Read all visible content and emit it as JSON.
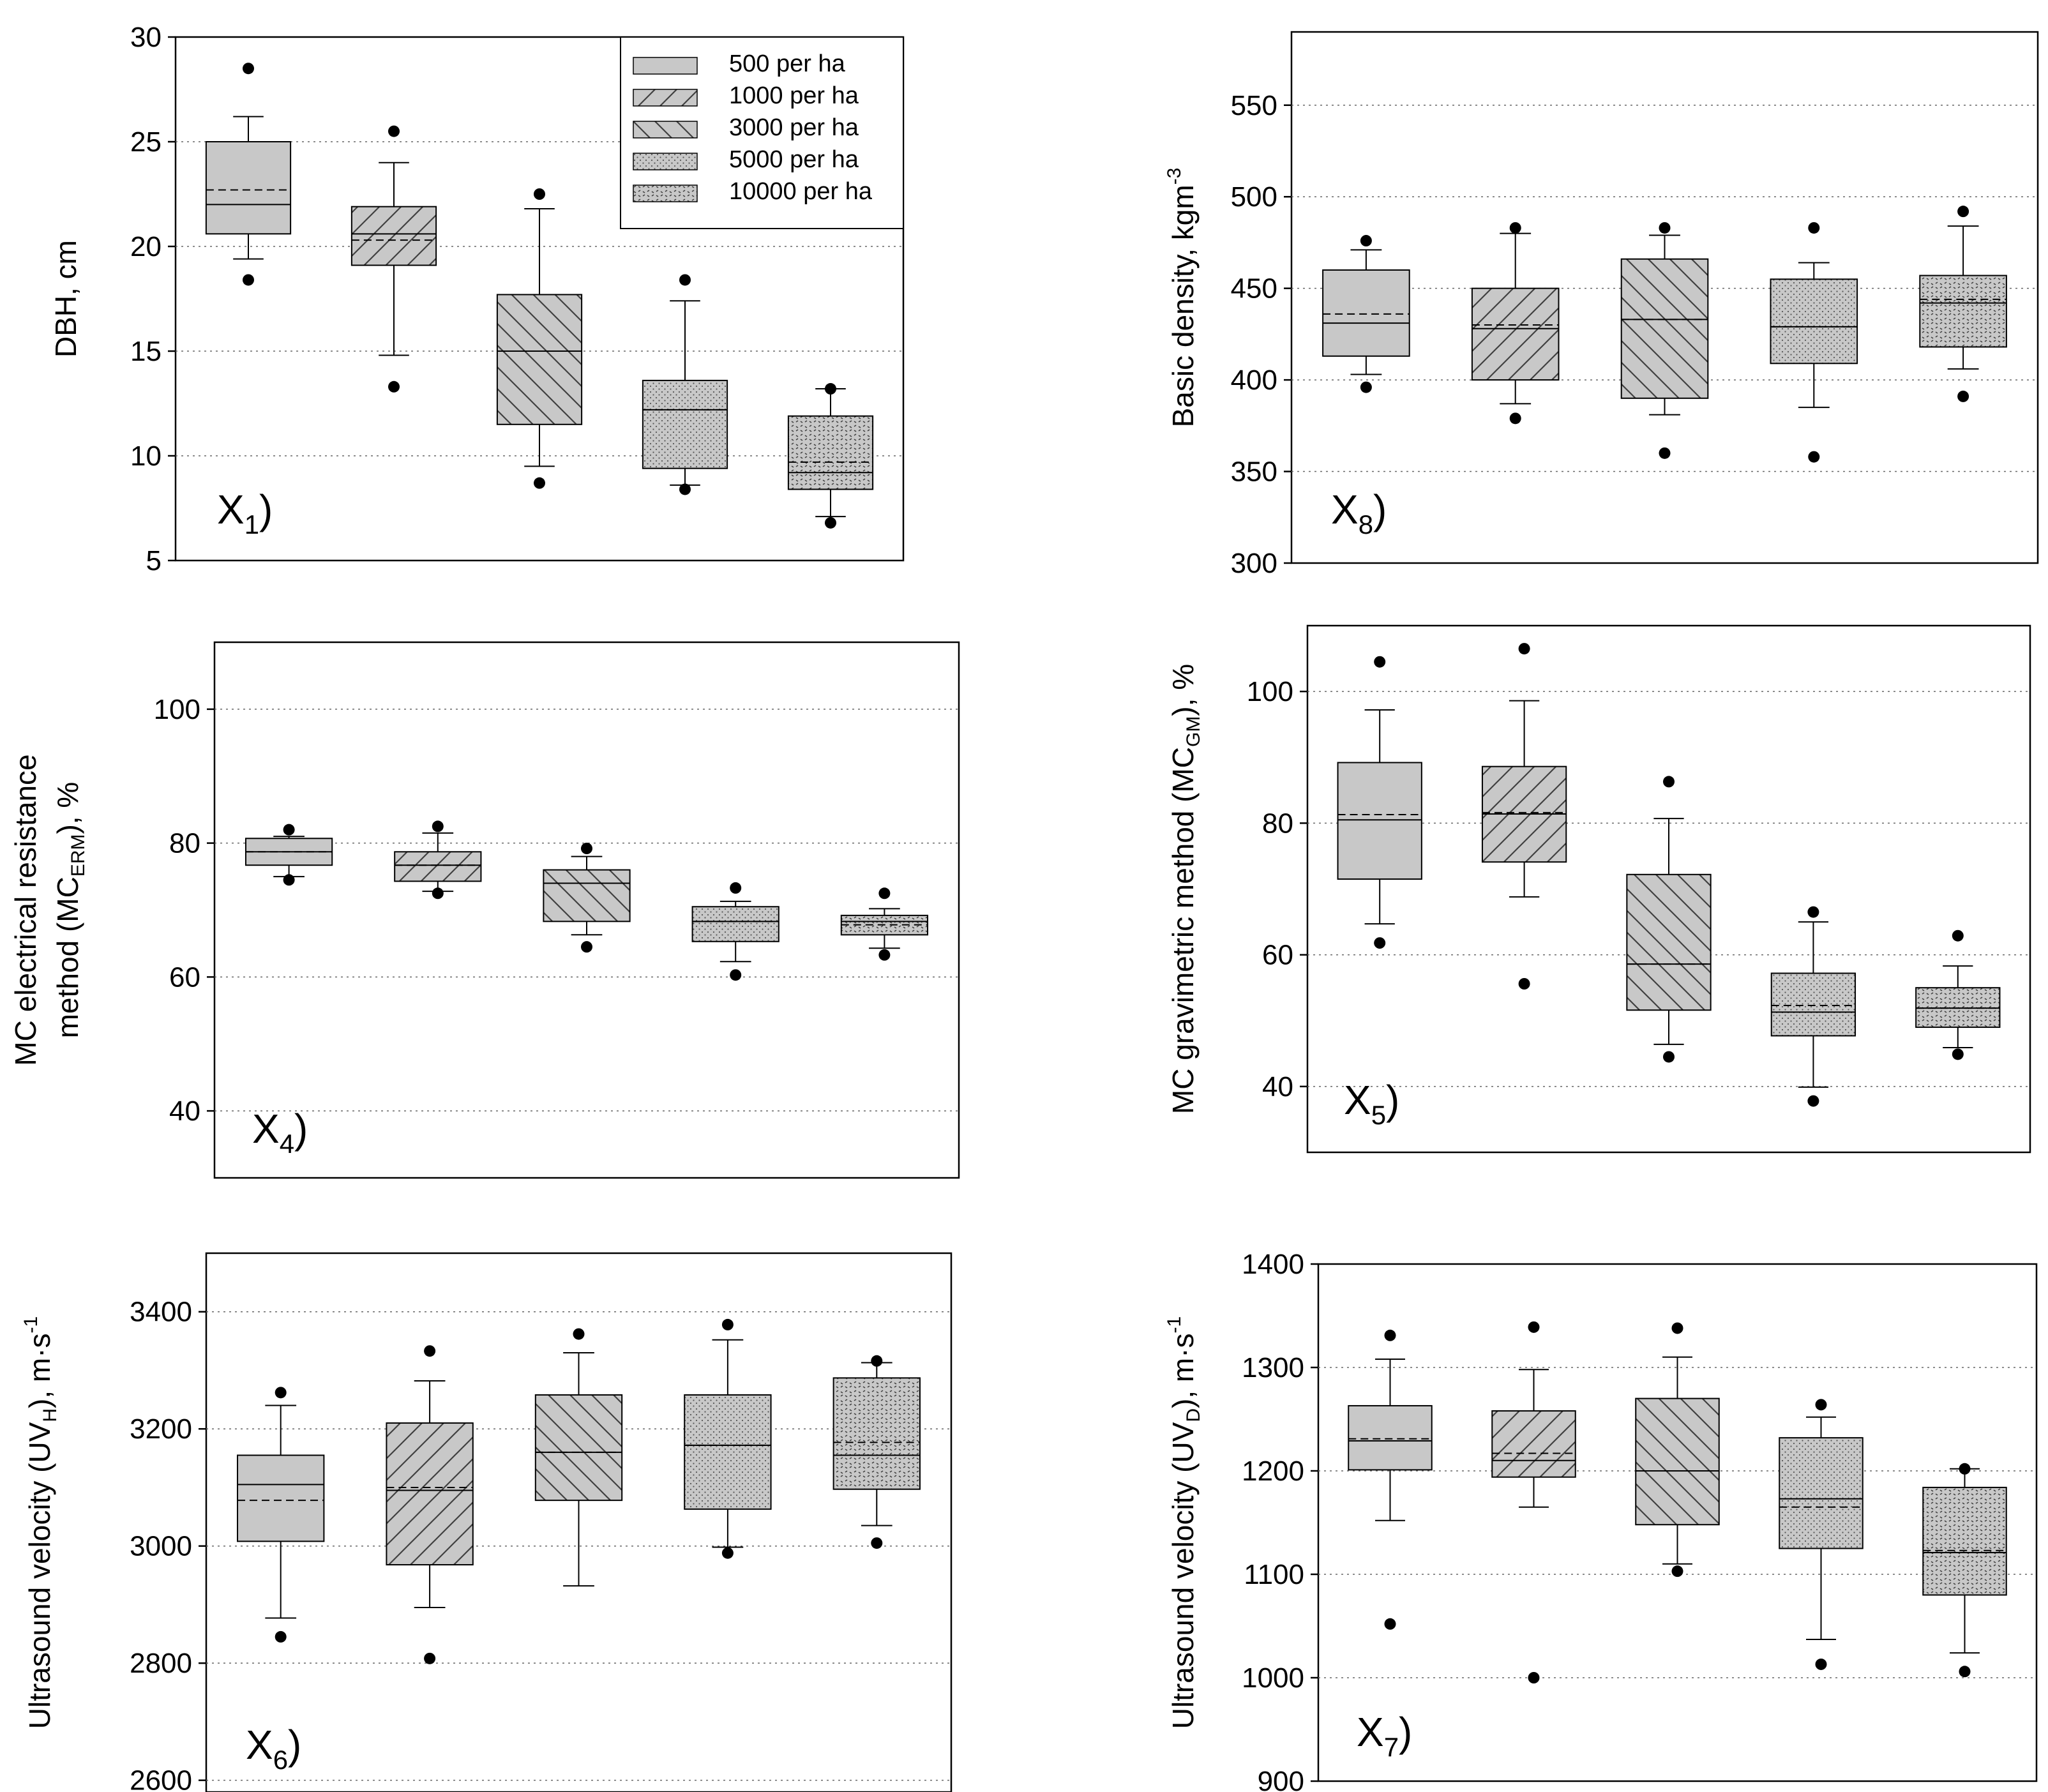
{
  "colors": {
    "box_fill": "#c8c8c8",
    "grid": "#666666",
    "axis": "#000000",
    "hatch": "#404040"
  },
  "legend": {
    "entries": [
      {
        "label": "500 per ha",
        "pattern": "solid"
      },
      {
        "label": "1000 per ha",
        "pattern": "diag-up"
      },
      {
        "label": "3000 per ha",
        "pattern": "diag-down"
      },
      {
        "label": "5000 per ha",
        "pattern": "fine-dots"
      },
      {
        "label": "10000 per ha",
        "pattern": "coarse-dots"
      }
    ]
  },
  "chart_data": [
    {
      "type": "box",
      "panel_label": "X",
      "panel_sub": "1",
      "ylabel": "DBH, cm",
      "ylabel_sub": "",
      "ylabel_suffix": "",
      "ylabel_sup": "",
      "ylim": [
        5,
        30
      ],
      "yticks": [
        5,
        10,
        15,
        20,
        25,
        30
      ],
      "grid_values": [
        10,
        15,
        20,
        25
      ],
      "categories": [
        "500 per ha",
        "1000 per ha",
        "3000 per ha",
        "5000 per ha",
        "10000 per ha"
      ],
      "boxes": [
        {
          "q1": 20.6,
          "median": 22.0,
          "q3": 25.0,
          "mean": 22.7,
          "whisker_low": 19.4,
          "whisker_high": 26.2,
          "outliers": [
            18.4,
            28.5
          ]
        },
        {
          "q1": 19.1,
          "median": 20.6,
          "q3": 21.9,
          "mean": 20.3,
          "whisker_low": 14.8,
          "whisker_high": 24.0,
          "outliers": [
            13.3,
            25.5
          ]
        },
        {
          "q1": 11.5,
          "median": 15.0,
          "q3": 17.7,
          "mean": 15.0,
          "whisker_low": 9.5,
          "whisker_high": 21.8,
          "outliers": [
            8.7,
            22.5
          ]
        },
        {
          "q1": 9.4,
          "median": 12.2,
          "q3": 13.6,
          "mean": 12.2,
          "whisker_low": 8.6,
          "whisker_high": 17.4,
          "outliers": [
            8.4,
            18.4
          ]
        },
        {
          "q1": 8.4,
          "median": 9.2,
          "q3": 11.9,
          "mean": 9.7,
          "whisker_low": 7.1,
          "whisker_high": 13.2,
          "outliers": [
            6.8,
            13.2
          ]
        }
      ]
    },
    {
      "type": "box",
      "panel_label": "X",
      "panel_sub": "8",
      "ylabel": "Basic density, kgm",
      "ylabel_sub": "",
      "ylabel_suffix": "",
      "ylabel_sup": "-3",
      "ylim": [
        300,
        590
      ],
      "yticks": [
        300,
        350,
        400,
        450,
        500,
        550
      ],
      "grid_values": [
        350,
        400,
        450,
        500,
        550
      ],
      "categories": [
        "500 per ha",
        "1000 per ha",
        "3000 per ha",
        "5000 per ha",
        "10000 per ha"
      ],
      "boxes": [
        {
          "q1": 413,
          "median": 431,
          "q3": 460,
          "mean": 436,
          "whisker_low": 403,
          "whisker_high": 471,
          "outliers": [
            396,
            476
          ]
        },
        {
          "q1": 400,
          "median": 428,
          "q3": 450,
          "mean": 430,
          "whisker_low": 387,
          "whisker_high": 480,
          "outliers": [
            379,
            483
          ]
        },
        {
          "q1": 390,
          "median": 433,
          "q3": 466,
          "mean": 433,
          "whisker_low": 381,
          "whisker_high": 479,
          "outliers": [
            360,
            483
          ]
        },
        {
          "q1": 409,
          "median": 429,
          "q3": 455,
          "mean": 429,
          "whisker_low": 385,
          "whisker_high": 464,
          "outliers": [
            358,
            483
          ]
        },
        {
          "q1": 418,
          "median": 442,
          "q3": 457,
          "mean": 444,
          "whisker_low": 406,
          "whisker_high": 484,
          "outliers": [
            391,
            492
          ]
        }
      ]
    },
    {
      "type": "box",
      "panel_label": "X",
      "panel_sub": "4",
      "ylabel": "MC electrical resistance",
      "ylabel2": "method (MC",
      "ylabel_sub": "ERM",
      "ylabel_suffix": "), %",
      "ylabel_sup": "",
      "ylim": [
        30,
        110
      ],
      "yticks": [
        40,
        60,
        80,
        100
      ],
      "grid_values": [
        40,
        60,
        80,
        100
      ],
      "categories": [
        "500 per ha",
        "1000 per ha",
        "3000 per ha",
        "5000 per ha",
        "10000 per ha"
      ],
      "boxes": [
        {
          "q1": 76.7,
          "median": 78.7,
          "q3": 80.7,
          "mean": 78.7,
          "whisker_low": 75.0,
          "whisker_high": 81.0,
          "outliers": [
            74.5,
            82.0
          ]
        },
        {
          "q1": 74.3,
          "median": 76.7,
          "q3": 78.7,
          "mean": 76.7,
          "whisker_low": 72.8,
          "whisker_high": 81.5,
          "outliers": [
            72.5,
            82.5
          ]
        },
        {
          "q1": 68.3,
          "median": 74.0,
          "q3": 76.0,
          "mean": 74.0,
          "whisker_low": 66.3,
          "whisker_high": 78.0,
          "outliers": [
            64.5,
            79.2
          ]
        },
        {
          "q1": 65.3,
          "median": 68.3,
          "q3": 70.5,
          "mean": 68.3,
          "whisker_low": 62.3,
          "whisker_high": 71.3,
          "outliers": [
            60.3,
            73.3
          ]
        },
        {
          "q1": 66.3,
          "median": 68.3,
          "q3": 69.2,
          "mean": 67.8,
          "whisker_low": 64.3,
          "whisker_high": 70.2,
          "outliers": [
            63.3,
            72.5
          ]
        }
      ]
    },
    {
      "type": "box",
      "panel_label": "X",
      "panel_sub": "5",
      "ylabel": "MC gravimetric method (MC",
      "ylabel_sub": "GM",
      "ylabel_suffix": "), %",
      "ylabel_sup": "",
      "ylim": [
        30,
        110
      ],
      "yticks": [
        40,
        60,
        80,
        100
      ],
      "grid_values": [
        40,
        60,
        80,
        100
      ],
      "categories": [
        "500 per ha",
        "1000 per ha",
        "3000 per ha",
        "5000 per ha",
        "10000 per ha"
      ],
      "boxes": [
        {
          "q1": 71.5,
          "median": 80.5,
          "q3": 89.2,
          "mean": 81.3,
          "whisker_low": 64.7,
          "whisker_high": 97.2,
          "outliers": [
            61.8,
            104.5
          ]
        },
        {
          "q1": 74.1,
          "median": 81.4,
          "q3": 88.6,
          "mean": 81.6,
          "whisker_low": 68.8,
          "whisker_high": 98.6,
          "outliers": [
            55.6,
            106.5
          ]
        },
        {
          "q1": 51.6,
          "median": 58.6,
          "q3": 72.2,
          "mean": 58.6,
          "whisker_low": 46.4,
          "whisker_high": 80.7,
          "outliers": [
            44.5,
            86.3
          ]
        },
        {
          "q1": 47.7,
          "median": 51.3,
          "q3": 57.2,
          "mean": 52.3,
          "whisker_low": 39.9,
          "whisker_high": 65.0,
          "outliers": [
            37.8,
            66.5
          ]
        },
        {
          "q1": 49.0,
          "median": 51.9,
          "q3": 55.0,
          "mean": 51.9,
          "whisker_low": 45.9,
          "whisker_high": 58.3,
          "outliers": [
            44.9,
            62.9
          ]
        }
      ]
    },
    {
      "type": "box",
      "panel_label": "X",
      "panel_sub": "6",
      "ylabel": "Ultrasound velocity (UV",
      "ylabel_sub": "H",
      "ylabel_suffix": "), m·s",
      "ylabel_sup": "-1",
      "ylim": [
        2580,
        3500
      ],
      "yticks": [
        2600,
        2800,
        3000,
        3200,
        3400
      ],
      "grid_values": [
        2600,
        2800,
        3000,
        3200,
        3400
      ],
      "categories": [
        "500 per ha",
        "1000 per ha",
        "3000 per ha",
        "5000 per ha",
        "10000 per ha"
      ],
      "boxes": [
        {
          "q1": 3008,
          "median": 3105,
          "q3": 3155,
          "mean": 3078,
          "whisker_low": 2877,
          "whisker_high": 3240,
          "outliers": [
            2845,
            3262
          ]
        },
        {
          "q1": 2968,
          "median": 3095,
          "q3": 3210,
          "mean": 3100,
          "whisker_low": 2895,
          "whisker_high": 3282,
          "outliers": [
            2808,
            3333
          ]
        },
        {
          "q1": 3078,
          "median": 3160,
          "q3": 3258,
          "mean": 3160,
          "whisker_low": 2932,
          "whisker_high": 3330,
          "outliers": [
            3362
          ]
        },
        {
          "q1": 3063,
          "median": 3172,
          "q3": 3258,
          "mean": 3172,
          "whisker_low": 2998,
          "whisker_high": 3352,
          "outliers": [
            2988,
            3378
          ]
        },
        {
          "q1": 3097,
          "median": 3155,
          "q3": 3287,
          "mean": 3177,
          "whisker_low": 3035,
          "whisker_high": 3313,
          "outliers": [
            3005,
            3316
          ]
        }
      ]
    },
    {
      "type": "box",
      "panel_label": "X",
      "panel_sub": "7",
      "ylabel": "Ultrasound velocity (UV",
      "ylabel_sub": "D",
      "ylabel_suffix": "), m·s",
      "ylabel_sup": "-1",
      "ylim": [
        900,
        1400
      ],
      "yticks": [
        900,
        1000,
        1100,
        1200,
        1300,
        1400
      ],
      "grid_values": [
        1000,
        1100,
        1200,
        1300
      ],
      "categories": [
        "500 per ha",
        "1000 per ha",
        "3000 per ha",
        "5000 per ha",
        "10000 per ha"
      ],
      "boxes": [
        {
          "q1": 1201,
          "median": 1229,
          "q3": 1263,
          "mean": 1231,
          "whisker_low": 1152,
          "whisker_high": 1308,
          "outliers": [
            1052,
            1331
          ]
        },
        {
          "q1": 1194,
          "median": 1210,
          "q3": 1258,
          "mean": 1217,
          "whisker_low": 1165,
          "whisker_high": 1298,
          "outliers": [
            1000,
            1339
          ]
        },
        {
          "q1": 1148,
          "median": 1200,
          "q3": 1270,
          "mean": 1200,
          "whisker_low": 1110,
          "whisker_high": 1310,
          "outliers": [
            1103,
            1338
          ]
        },
        {
          "q1": 1125,
          "median": 1173,
          "q3": 1232,
          "mean": 1165,
          "whisker_low": 1037,
          "whisker_high": 1252,
          "outliers": [
            1013,
            1264
          ]
        },
        {
          "q1": 1080,
          "median": 1121,
          "q3": 1184,
          "mean": 1123,
          "whisker_low": 1024,
          "whisker_high": 1202,
          "outliers": [
            1006,
            1202
          ]
        }
      ]
    }
  ]
}
